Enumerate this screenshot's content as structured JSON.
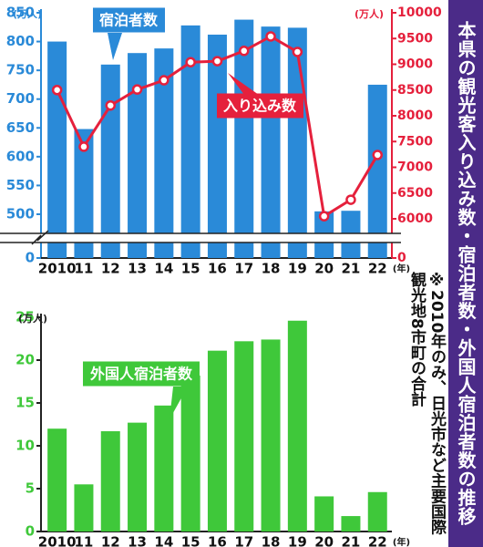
{
  "title": "本県の観光客入り込み数・宿泊者数・外国人宿泊者数の推移",
  "note": "※2010年のみ、日光市など主要国際観光地8市町の合計",
  "chart_data": [
    {
      "type": "bar",
      "categories": [
        "2010",
        "11",
        "12",
        "13",
        "14",
        "15",
        "16",
        "17",
        "18",
        "19",
        "20",
        "21",
        "22"
      ],
      "x_label": "(年)",
      "y_label": "(万人)",
      "y2_label": "(万人)",
      "ylim": [
        0,
        850
      ],
      "yticks": [
        0,
        500,
        550,
        600,
        650,
        700,
        750,
        800,
        850
      ],
      "y2lim": [
        0,
        10000
      ],
      "y2ticks": [
        0,
        6000,
        6500,
        7000,
        7500,
        8000,
        8500,
        9000,
        9500,
        10000
      ],
      "axis_break": true,
      "series": [
        {
          "name": "宿泊者数",
          "color": "#2a8ad8",
          "values": [
            800,
            648,
            760,
            780,
            788,
            828,
            812,
            838,
            826,
            824,
            505,
            506,
            725
          ]
        },
        {
          "name": "入り込み数",
          "type": "line",
          "axis": "y2",
          "color": "#e5203c",
          "values": [
            8500,
            7400,
            8200,
            8510,
            8690,
            9040,
            9060,
            9260,
            9540,
            9240,
            6050,
            6370,
            7240
          ]
        }
      ]
    },
    {
      "type": "bar",
      "categories": [
        "2010",
        "11",
        "12",
        "13",
        "14",
        "15",
        "16",
        "17",
        "18",
        "19",
        "20",
        "21",
        "22"
      ],
      "x_label": "(年)",
      "y_label": "(万人)",
      "ylim": [
        0,
        25
      ],
      "yticks": [
        0,
        5,
        10,
        15,
        20,
        25
      ],
      "series": [
        {
          "name": "外国人宿泊者数",
          "color": "#3fc83a",
          "values": [
            12,
            5.5,
            11.7,
            12.7,
            14.7,
            18.2,
            21.1,
            22.2,
            22.4,
            24.6,
            4.1,
            1.8,
            4.6
          ]
        }
      ]
    }
  ]
}
